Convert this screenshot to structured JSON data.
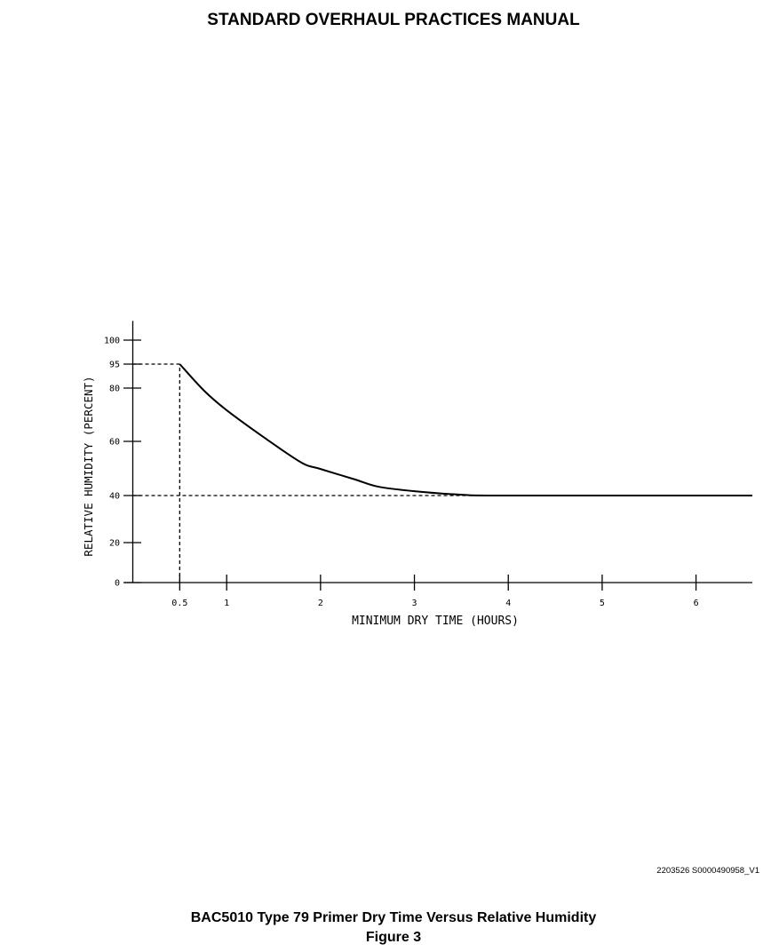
{
  "header": {
    "title": "STANDARD OVERHAUL PRACTICES MANUAL"
  },
  "chart_data": {
    "type": "line",
    "x_label": "MINIMUM DRY TIME (HOURS)",
    "y_label": "RELATIVE HUMIDITY (PERCENT)",
    "x": [
      0.5,
      0.76,
      1.0,
      1.43,
      1.8,
      2.0,
      2.37,
      2.61,
      3.0,
      3.51,
      4.0,
      6.6
    ],
    "series": [
      {
        "color": "#000000",
        "values": [
          95,
          79,
          71.7,
          60.7,
          52.1,
          49.8,
          45.9,
          43.3,
          41.6,
          40.3,
          40,
          40
        ]
      }
    ],
    "xlim": [
      0,
      6.6
    ],
    "ylim": [
      0,
      104
    ],
    "xticks": [
      0.5,
      1,
      2,
      3,
      4,
      5,
      6
    ],
    "yticks": [
      0,
      20,
      40,
      60,
      80,
      95,
      100
    ]
  },
  "figure_id": "2203526 S0000490958_V1",
  "caption": {
    "title": "BAC5010 Type 79 Primer Dry Time Versus Relative Humidity",
    "figure": "Figure 3"
  }
}
